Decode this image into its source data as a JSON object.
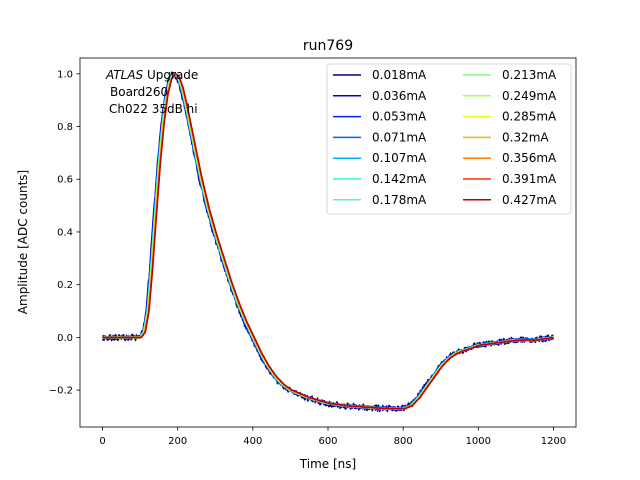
{
  "chart_data": {
    "type": "line",
    "title": "run769",
    "xlabel": "Time [ns]",
    "ylabel": "Amplitude [ADC counts]",
    "xlim": [
      -60,
      1260
    ],
    "ylim": [
      -0.34,
      1.06
    ],
    "xticks": [
      0,
      200,
      400,
      600,
      800,
      1000,
      1200
    ],
    "yticks": [
      -0.2,
      0.0,
      0.2,
      0.4,
      0.6,
      0.8,
      1.0
    ],
    "xtick_labels": [
      "0",
      "200",
      "400",
      "600",
      "800",
      "1000",
      "1200"
    ],
    "ytick_labels": [
      "−0.2",
      "0.0",
      "0.2",
      "0.4",
      "0.6",
      "0.8",
      "1.0"
    ],
    "grid": false,
    "legend_position": "top-right",
    "legend_columns": 2,
    "annotation": {
      "italic": "ATLAS",
      "line1_rest": " Upgrade",
      "line2": "Board260",
      "line3": "Ch022 35dB hi"
    },
    "pulse_shape": {
      "x": [
        0,
        100,
        110,
        120,
        130,
        140,
        150,
        160,
        170,
        180,
        190,
        200,
        210,
        220,
        230,
        240,
        250,
        260,
        270,
        280,
        290,
        300,
        320,
        340,
        360,
        380,
        400,
        420,
        440,
        460,
        480,
        500,
        550,
        600,
        650,
        700,
        750,
        800,
        820,
        840,
        860,
        880,
        900,
        920,
        940,
        960,
        980,
        1000,
        1050,
        1100,
        1150,
        1200
      ],
      "y": [
        0.0,
        0.0,
        0.02,
        0.1,
        0.27,
        0.47,
        0.66,
        0.81,
        0.92,
        0.98,
        1.0,
        0.99,
        0.95,
        0.89,
        0.82,
        0.75,
        0.68,
        0.61,
        0.55,
        0.49,
        0.44,
        0.39,
        0.3,
        0.21,
        0.13,
        0.06,
        0.0,
        -0.06,
        -0.11,
        -0.15,
        -0.18,
        -0.2,
        -0.23,
        -0.25,
        -0.26,
        -0.265,
        -0.27,
        -0.27,
        -0.26,
        -0.23,
        -0.19,
        -0.15,
        -0.11,
        -0.08,
        -0.06,
        -0.05,
        -0.04,
        -0.03,
        -0.02,
        -0.01,
        -0.01,
        0.0
      ]
    },
    "series": [
      {
        "name": "0.018mA",
        "color": "#00007f",
        "noise": 0.012
      },
      {
        "name": "0.036mA",
        "color": "#0000cd",
        "noise": 0.008
      },
      {
        "name": "0.053mA",
        "color": "#0020ff",
        "noise": 0.006
      },
      {
        "name": "0.071mA",
        "color": "#0068ff",
        "noise": 0.005
      },
      {
        "name": "0.107mA",
        "color": "#00b0ff",
        "noise": 0.004
      },
      {
        "name": "0.142mA",
        "color": "#29ffce",
        "noise": 0.003
      },
      {
        "name": "0.178mA",
        "color": "#4dffa9",
        "noise": 0.003
      },
      {
        "name": "0.213mA",
        "color": "#7dff7a",
        "noise": 0.002
      },
      {
        "name": "0.249mA",
        "color": "#adff49",
        "noise": 0.002
      },
      {
        "name": "0.285mA",
        "color": "#e4ff13",
        "noise": 0.002
      },
      {
        "name": "0.32mA",
        "color": "#ffb700",
        "noise": 0.002
      },
      {
        "name": "0.356mA",
        "color": "#ff7a00",
        "noise": 0.001
      },
      {
        "name": "0.391mA",
        "color": "#ff3000",
        "noise": 0.001
      },
      {
        "name": "0.427mA",
        "color": "#bd0000",
        "noise": 0.001
      }
    ]
  }
}
